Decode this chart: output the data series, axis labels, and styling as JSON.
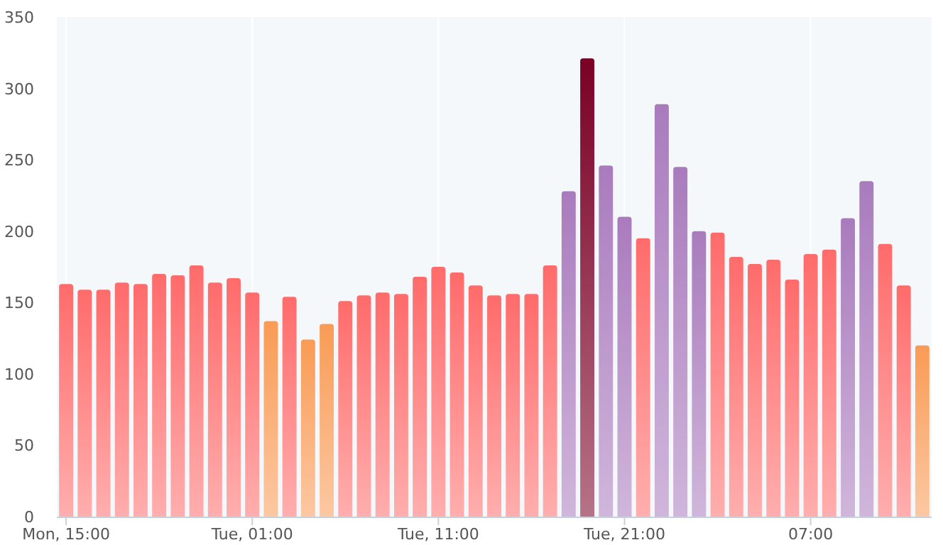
{
  "chart_data": {
    "type": "bar",
    "categories": [
      "Mon, 15:00",
      null,
      null,
      null,
      null,
      null,
      null,
      null,
      null,
      null,
      "Tue, 01:00",
      null,
      null,
      null,
      null,
      null,
      null,
      null,
      null,
      null,
      "Tue, 11:00",
      null,
      null,
      null,
      null,
      null,
      null,
      null,
      null,
      null,
      "Tue, 21:00",
      null,
      null,
      null,
      null,
      null,
      null,
      null,
      null,
      null,
      "07:00",
      null,
      null,
      null,
      null,
      null,
      null
    ],
    "values": [
      163,
      159,
      159,
      164,
      163,
      170,
      169,
      176,
      164,
      167,
      157,
      137,
      154,
      124,
      135,
      151,
      155,
      157,
      156,
      168,
      175,
      171,
      162,
      155,
      156,
      156,
      176,
      228,
      321,
      246,
      210,
      195,
      289,
      245,
      200,
      199,
      182,
      177,
      180,
      166,
      184,
      187,
      209,
      235,
      191,
      162,
      120
    ],
    "colors": [
      "#ff6b6b",
      "#ff6b6b",
      "#ff6b6b",
      "#ff6b6b",
      "#ff6b6b",
      "#ff6b6b",
      "#ff6b6b",
      "#ff6b6b",
      "#ff6b6b",
      "#ff6b6b",
      "#ff6b6b",
      "#f99b55",
      "#ff6b6b",
      "#f99b55",
      "#f99b55",
      "#ff6b6b",
      "#ff6b6b",
      "#ff6b6b",
      "#ff6b6b",
      "#ff6b6b",
      "#ff6b6b",
      "#ff6b6b",
      "#ff6b6b",
      "#ff6b6b",
      "#ff6b6b",
      "#ff6b6b",
      "#ff6b6b",
      "#a97bbd",
      "#7a0026",
      "#a97bbd",
      "#a97bbd",
      "#ff6b6b",
      "#a97bbd",
      "#a97bbd",
      "#a97bbd",
      "#ff6b6b",
      "#ff6b6b",
      "#ff6b6b",
      "#ff6b6b",
      "#ff6b6b",
      "#ff6b6b",
      "#ff6b6b",
      "#a97bbd",
      "#a97bbd",
      "#ff6b6b",
      "#ff6b6b",
      "#f99b55"
    ],
    "ylim": [
      0,
      350
    ],
    "yticks": [
      0,
      50,
      100,
      150,
      200,
      250,
      300,
      350
    ],
    "grid": "x"
  }
}
